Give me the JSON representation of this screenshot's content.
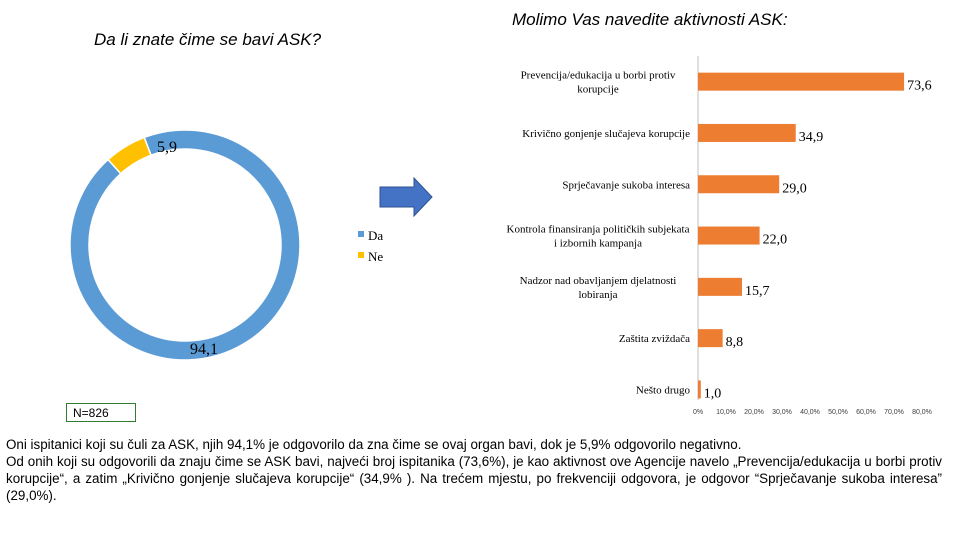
{
  "donut": {
    "title": "Da li znate čime se bavi ASK?",
    "legend": [
      {
        "label": "Da",
        "color": "#5b9bd5"
      },
      {
        "label": "Ne",
        "color": "#ffc000"
      }
    ],
    "n_label": "N=826"
  },
  "bars": {
    "title": "Molimo Vas navedite aktivnosti ASK:",
    "color": "#ed7d31"
  },
  "chart_data": [
    {
      "type": "pie",
      "title": "Da li znate čime se bavi ASK?",
      "categories": [
        "Da",
        "Ne"
      ],
      "values": [
        94.1,
        5.9
      ],
      "value_labels": [
        "94,1",
        "5,9"
      ],
      "colors": [
        "#5b9bd5",
        "#ffc000"
      ],
      "donut": true
    },
    {
      "type": "bar",
      "orientation": "horizontal",
      "title": "Molimo Vas navedite aktivnosti ASK:",
      "categories": [
        "Prevencija/edukacija u borbi protiv korupcije",
        "Krivično gonjenje slučajeva korupcije",
        "Sprječavanje sukoba interesa",
        "Kontrola finansiranja političkih subjekata i izbornih kampanja",
        "Nadzor nad obavljanjem djelatnosti lobiranja",
        "Zaštita zviždača",
        "Nešto drugo"
      ],
      "values": [
        73.6,
        34.9,
        29.0,
        22.0,
        15.7,
        8.8,
        1.0
      ],
      "value_labels": [
        "73,6",
        "34,9",
        "29,0",
        "22,0",
        "15,7",
        "8,8",
        "1,0"
      ],
      "xlim": [
        0,
        80
      ],
      "xticks": [
        "0%",
        "10,0%",
        "20,0%",
        "30,0%",
        "40,0%",
        "50,0%",
        "60,0%",
        "70,0%",
        "80,0%"
      ]
    }
  ],
  "description": {
    "p1": "Oni ispitanici koji su čuli za ASK, njih 94,1% je odgovorilo da zna čime se ovaj organ bavi, dok je 5,9% odgovorilo negativno.",
    "p2": "Od onih koji su odgovorili da znaju čime se ASK bavi, najveći broj ispitanika (73,6%), je kao aktivnost ove Agencije navelo „Prevencija/edukacija u borbi protiv korupcije“, a zatim „Krivično gonjenje slučajeva korupcije“ (34,9% ). Na trećem mjestu, po frekvenciji odgovora, je odgovor “Sprječavanje sukoba interesa” (29,0%)."
  }
}
